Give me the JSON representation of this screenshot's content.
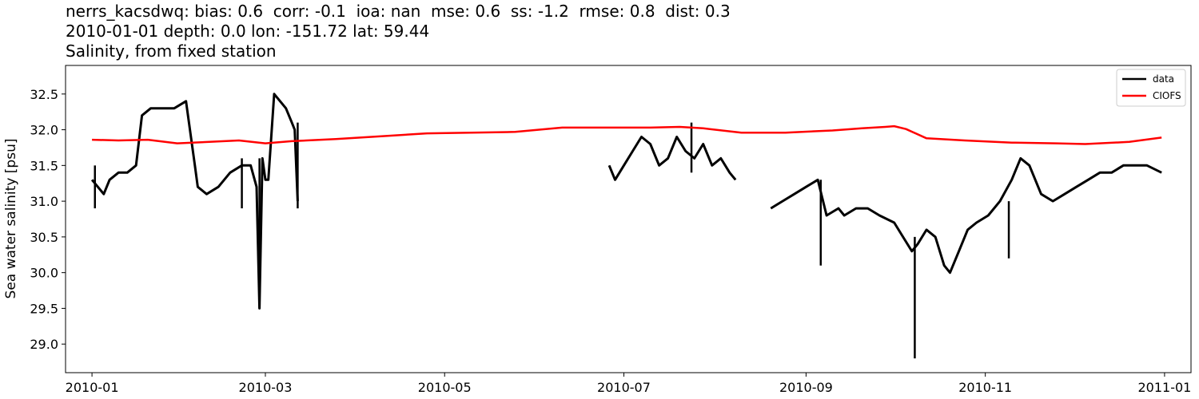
{
  "title_lines": [
    "nerrs_kacsdwq: bias: 0.6  corr: -0.1  ioa: nan  mse: 0.6  ss: -1.2  rmse: 0.8  dist: 0.3",
    "2010-01-01 depth: 0.0 lon: -151.72 lat: 59.44",
    "Salinity, from fixed station"
  ],
  "chart_data": {
    "type": "line",
    "ylabel": "Sea water salinity [psu]",
    "xlabel": "",
    "xlim": [
      "2009-12-23",
      "2011-01-10"
    ],
    "ylim": [
      28.6,
      32.9
    ],
    "x_ticks": [
      "2010-01",
      "2010-03",
      "2010-05",
      "2010-07",
      "2010-09",
      "2010-11",
      "2011-01"
    ],
    "y_ticks": [
      29.0,
      29.5,
      30.0,
      30.5,
      31.0,
      31.5,
      32.0,
      32.5
    ],
    "legend_position": "upper right",
    "series": [
      {
        "name": "data",
        "color": "#000000",
        "segments": [
          {
            "x": [
              "2010-01-01",
              "2010-01-03",
              "2010-01-05",
              "2010-01-07",
              "2010-01-10",
              "2010-01-13",
              "2010-01-16",
              "2010-01-18",
              "2010-01-21",
              "2010-01-25",
              "2010-01-29",
              "2010-02-02",
              "2010-02-05",
              "2010-02-06",
              "2010-02-09",
              "2010-02-13",
              "2010-02-17",
              "2010-02-21",
              "2010-02-24",
              "2010-02-26",
              "2010-02-27",
              "2010-02-28",
              "2010-03-01",
              "2010-03-02",
              "2010-03-04",
              "2010-03-06",
              "2010-03-08",
              "2010-03-10",
              "2010-03-11",
              "2010-03-12"
            ],
            "y": [
              31.3,
              31.2,
              31.1,
              31.3,
              31.4,
              31.4,
              31.5,
              32.2,
              32.3,
              32.3,
              32.3,
              32.4,
              31.5,
              31.2,
              31.1,
              31.2,
              31.4,
              31.5,
              31.5,
              31.2,
              29.5,
              31.6,
              31.3,
              31.3,
              32.5,
              32.4,
              32.3,
              32.1,
              32.0,
              31.0
            ]
          },
          {
            "x": [
              "2010-06-26",
              "2010-06-28",
              "2010-07-01",
              "2010-07-04",
              "2010-07-07",
              "2010-07-10",
              "2010-07-13",
              "2010-07-16",
              "2010-07-19",
              "2010-07-22",
              "2010-07-25",
              "2010-07-28",
              "2010-07-31",
              "2010-08-03",
              "2010-08-06",
              "2010-08-08"
            ],
            "y": [
              31.5,
              31.3,
              31.5,
              31.7,
              31.9,
              31.8,
              31.5,
              31.6,
              31.9,
              31.7,
              31.6,
              31.8,
              31.5,
              31.6,
              31.4,
              31.3
            ]
          },
          {
            "x": [
              "2010-08-20",
              "2010-08-24",
              "2010-08-28",
              "2010-09-01",
              "2010-09-05",
              "2010-09-08",
              "2010-09-12",
              "2010-09-14",
              "2010-09-18",
              "2010-09-22",
              "2010-09-26",
              "2010-10-01",
              "2010-10-04",
              "2010-10-07",
              "2010-10-09",
              "2010-10-12",
              "2010-10-15",
              "2010-10-18",
              "2010-10-20",
              "2010-10-23",
              "2010-10-26",
              "2010-10-29",
              "2010-11-02",
              "2010-11-06",
              "2010-11-10",
              "2010-11-13",
              "2010-11-16",
              "2010-11-20",
              "2010-11-24",
              "2010-11-28",
              "2010-12-02",
              "2010-12-06",
              "2010-12-10",
              "2010-12-14",
              "2010-12-18",
              "2010-12-22",
              "2010-12-26",
              "2010-12-31"
            ],
            "y": [
              30.9,
              31.0,
              31.1,
              31.2,
              31.3,
              30.8,
              30.9,
              30.8,
              30.9,
              30.9,
              30.8,
              30.7,
              30.5,
              30.3,
              30.4,
              30.6,
              30.5,
              30.1,
              30.0,
              30.3,
              30.6,
              30.7,
              30.8,
              31.0,
              31.3,
              31.6,
              31.5,
              31.1,
              31.0,
              31.1,
              31.2,
              31.3,
              31.4,
              31.4,
              31.5,
              31.5,
              31.5,
              31.4
            ]
          }
        ],
        "spikes": [
          {
            "x": "2010-02-27",
            "y_min": 29.5,
            "y_max": 31.6
          },
          {
            "x": "2010-10-08",
            "y_min": 28.8,
            "y_max": 30.5
          },
          {
            "x": "2010-09-06",
            "y_min": 30.1,
            "y_max": 31.3
          },
          {
            "x": "2010-11-09",
            "y_min": 30.2,
            "y_max": 31.0
          },
          {
            "x": "2010-01-02",
            "y_min": 30.9,
            "y_max": 31.5
          },
          {
            "x": "2010-02-21",
            "y_min": 30.9,
            "y_max": 31.6
          },
          {
            "x": "2010-03-12",
            "y_min": 30.9,
            "y_max": 32.1
          },
          {
            "x": "2010-07-24",
            "y_min": 31.4,
            "y_max": 32.1
          }
        ]
      },
      {
        "name": "CIOFS",
        "color": "#ff0000",
        "segments": [
          {
            "x": [
              "2010-01-01",
              "2010-01-10",
              "2010-01-20",
              "2010-01-30",
              "2010-02-10",
              "2010-02-20",
              "2010-03-01",
              "2010-03-10",
              "2010-03-25",
              "2010-04-10",
              "2010-04-25",
              "2010-05-10",
              "2010-05-25",
              "2010-06-10",
              "2010-06-25",
              "2010-07-10",
              "2010-07-20",
              "2010-07-28",
              "2010-08-10",
              "2010-08-25",
              "2010-09-10",
              "2010-09-20",
              "2010-09-28",
              "2010-10-01",
              "2010-10-05",
              "2010-10-12",
              "2010-10-25",
              "2010-11-10",
              "2010-11-25",
              "2010-12-05",
              "2010-12-20",
              "2010-12-31"
            ],
            "y": [
              31.86,
              31.85,
              31.86,
              31.81,
              31.83,
              31.85,
              31.81,
              31.84,
              31.87,
              31.91,
              31.95,
              31.96,
              31.97,
              32.03,
              32.03,
              32.03,
              32.04,
              32.02,
              31.96,
              31.96,
              31.99,
              32.02,
              32.04,
              32.05,
              32.01,
              31.88,
              31.85,
              31.82,
              31.81,
              31.8,
              31.83,
              31.89
            ]
          }
        ]
      }
    ]
  }
}
